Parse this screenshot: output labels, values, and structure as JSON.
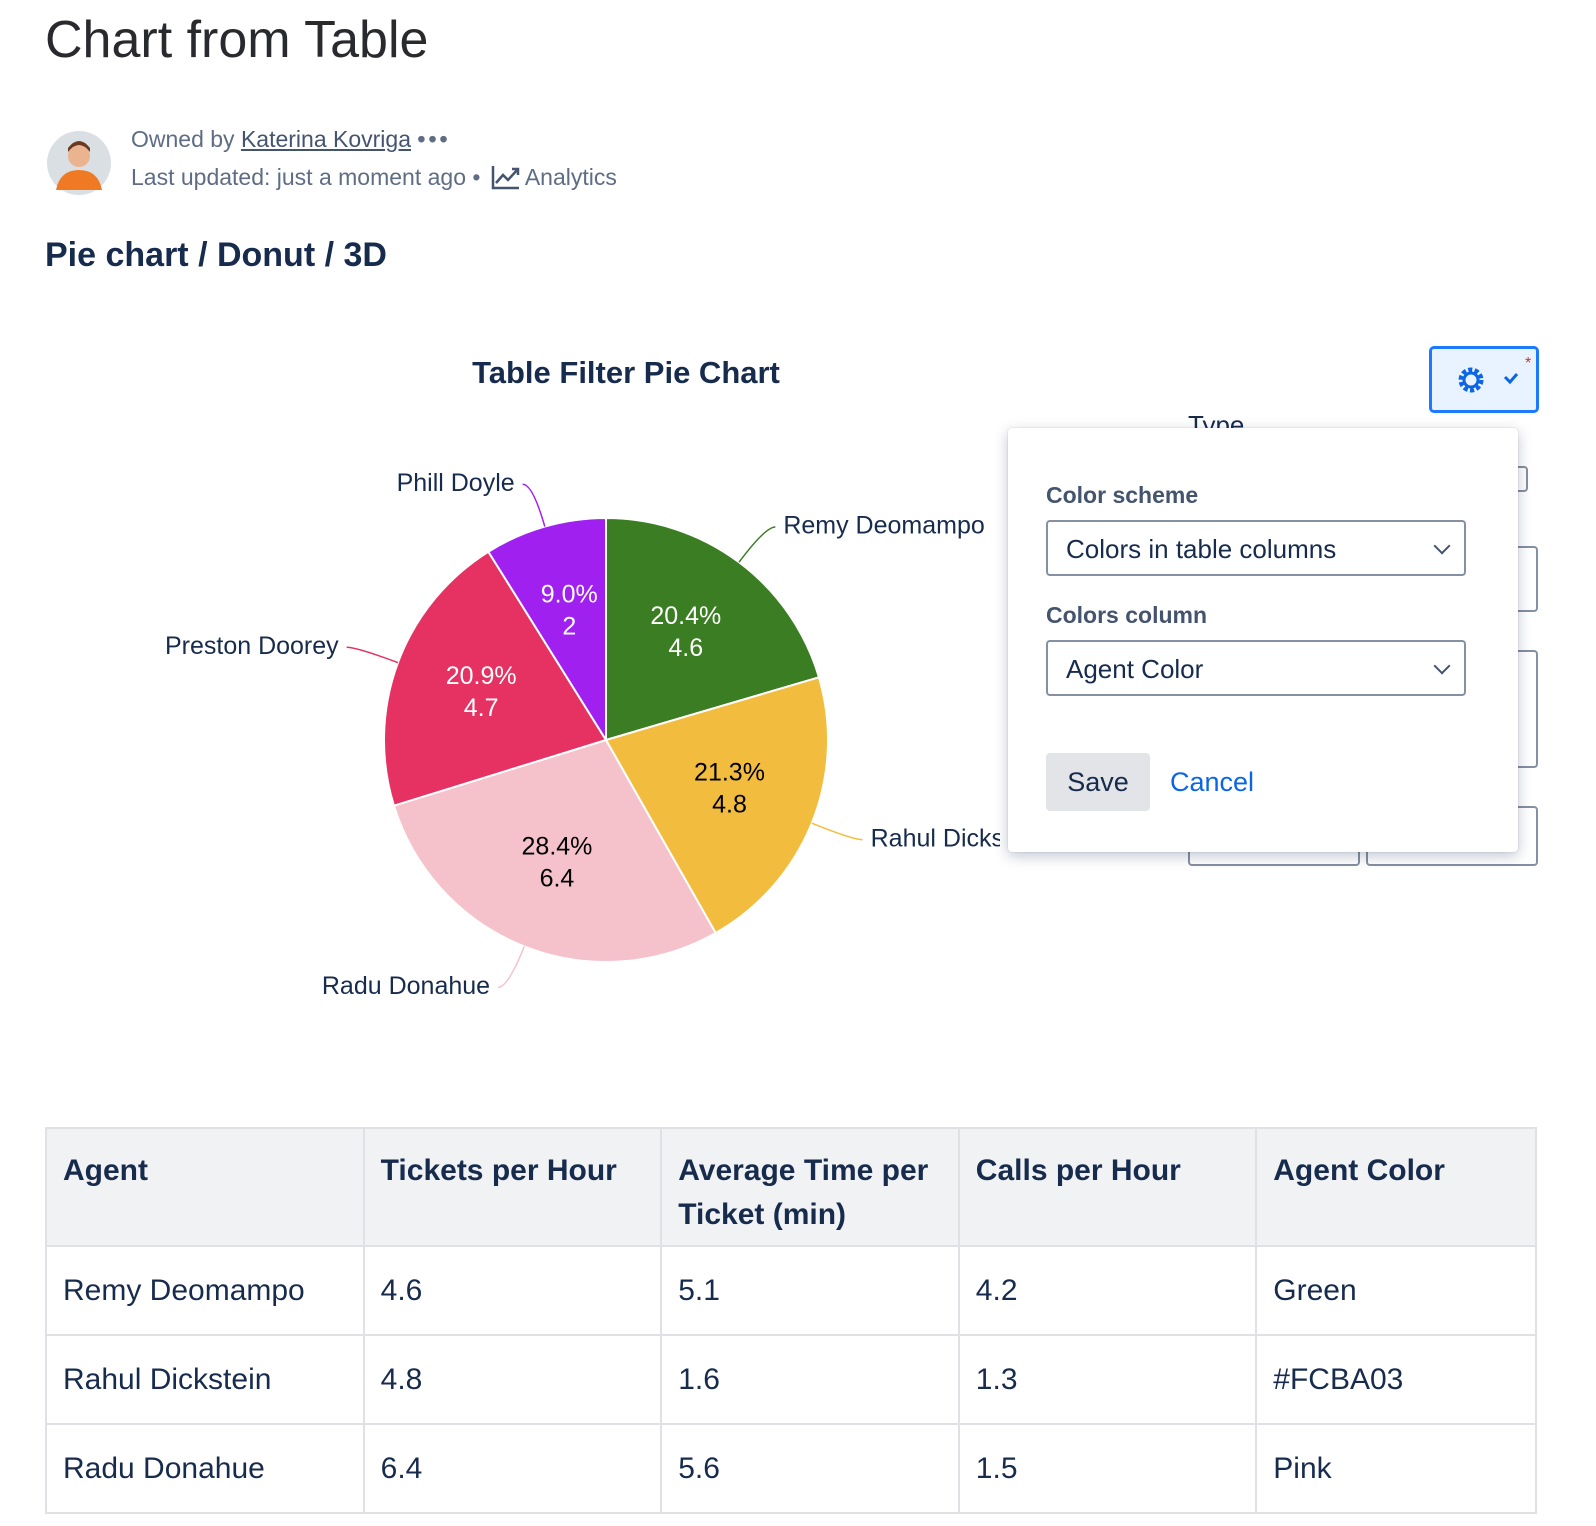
{
  "page": {
    "title": "Chart from Table",
    "owner_prefix": "Owned by",
    "owner": "Katerina Kovriga",
    "last_updated": "Last updated: just a moment ago",
    "analytics": "Analytics",
    "section": "Pie chart / Donut / 3D"
  },
  "chart_data": {
    "type": "pie",
    "title": "Table Filter Pie Chart",
    "categories": [
      "Remy Deomampo",
      "Rahul Dickstein",
      "Radu Donahue",
      "Preston Doorey",
      "Phill Doyle"
    ],
    "values": [
      4.6,
      4.8,
      6.4,
      4.7,
      2
    ],
    "percent_labels": [
      "20.4%",
      "21.3%",
      "28.4%",
      "20.9%",
      "9.0%"
    ],
    "colors": [
      "#3a7d22",
      "#f2bd3f",
      "#f5c2cb",
      "#e63262",
      "#a020f0"
    ]
  },
  "popover": {
    "type_label": "Type",
    "color_scheme_label": "Color scheme",
    "color_scheme": "Colors in table columns",
    "colors_column_label": "Colors column",
    "colors_column": "Agent Color",
    "save": "Save",
    "cancel": "Cancel"
  },
  "table": {
    "headers": [
      "Agent",
      "Tickets per Hour",
      "Average Time per Ticket (min)",
      "Calls per Hour",
      "Agent Color"
    ],
    "rows": [
      [
        "Remy Deomampo",
        4.6,
        5.1,
        4.2,
        "Green"
      ],
      [
        "Rahul Dickstein",
        4.8,
        1.6,
        1.3,
        "#FCBA03"
      ],
      [
        "Radu Donahue",
        6.4,
        5.6,
        1.5,
        "Pink"
      ]
    ]
  }
}
